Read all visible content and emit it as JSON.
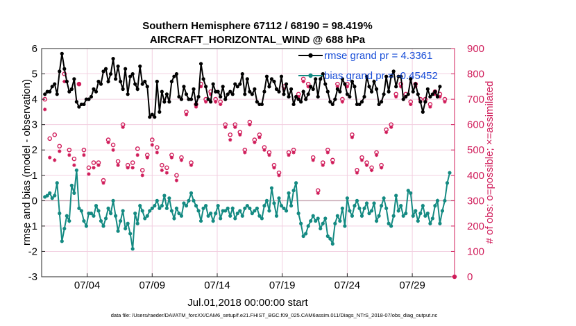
{
  "colors": {
    "rmse": "#000000",
    "bias": "#148a82",
    "obs": "#d01c5a",
    "legend_text": "#1a4fd8",
    "grid": "#f2cfe0",
    "zero_line": "#c9a9b4"
  },
  "chart_data": {
    "type": "line",
    "title": [
      "Southern Hemisphere 67112 / 68190 = 98.419%",
      "AIRCRAFT_HORIZONTAL_WIND @ 688 hPa"
    ],
    "xlabel": "Jul.01,2018 00:00:00 start",
    "ylabel": "rmse and bias (model - observation)",
    "y2label": "# of obs: o=possible; ×=assimilated",
    "footnote": "data file: /Users/raeder/DAI/ATM_forcXX/CAM6_setup/f.e21.FHIST_BGC.f09_025.CAM6assim.011/Diags_NTrS_2018-07/obs_diag_output.nc",
    "xlim": [
      0.5,
      32.25
    ],
    "ylim": [
      -3,
      6
    ],
    "y2lim": [
      0,
      900
    ],
    "yticks": [
      -3,
      -2,
      -1,
      0,
      1,
      2,
      3,
      4,
      5,
      6
    ],
    "y2ticks": [
      0,
      100,
      200,
      300,
      400,
      500,
      600,
      700,
      800,
      900
    ],
    "xticks": [
      {
        "x": 4,
        "label": "07/04"
      },
      {
        "x": 9,
        "label": "07/09"
      },
      {
        "x": 14,
        "label": "07/14"
      },
      {
        "x": 19,
        "label": "07/19"
      },
      {
        "x": 24,
        "label": "07/24"
      },
      {
        "x": 29,
        "label": "07/29"
      }
    ],
    "legend": [
      {
        "name": "rmse grand pr = 4.3361"
      },
      {
        "name": "bias grand pr = -0.45452"
      }
    ],
    "series": [
      {
        "name": "rmse",
        "values": [
          4.2,
          4.3,
          4.3,
          4.5,
          4.6,
          4.2,
          5.1,
          5.8,
          5.2,
          4.7,
          4.3,
          4.4,
          4.8,
          3.9,
          3.7,
          3.8,
          3.8,
          4.0,
          4.0,
          4.1,
          4.4,
          4.3,
          4.7,
          4.6,
          5.1,
          5.2,
          4.7,
          5.0,
          5.6,
          4.8,
          5.3,
          4.7,
          4.4,
          5.2,
          4.2,
          4.9,
          5.0,
          4.6,
          4.4,
          5.3,
          4.6,
          4.7,
          4.5,
          3.3,
          3.4,
          3.3,
          4.7,
          3.5,
          4.3,
          3.9,
          4.2,
          3.9,
          4.7,
          4.9,
          5.0,
          4.1,
          4.0,
          4.5,
          4.2,
          4.0,
          4.0,
          4.4,
          3.8,
          4.1,
          5.4,
          4.8,
          4.5,
          4.0,
          3.9,
          4.6,
          4.3,
          4.3,
          4.1,
          4.5,
          4.0,
          4.2,
          4.3,
          4.2,
          4.6,
          4.5,
          4.6,
          5.0,
          4.2,
          4.8,
          4.3,
          4.2,
          4.4,
          3.9,
          3.8,
          3.8,
          4.3,
          4.9,
          4.5,
          4.8,
          4.7,
          4.4,
          4.3,
          4.9,
          4.2,
          4.6,
          4.1,
          4.4,
          3.8,
          4.1,
          4.0,
          3.9,
          4.3,
          4.0,
          4.2,
          4.5,
          4.4,
          4.8,
          4.1,
          4.8,
          5.0,
          4.6,
          4.3,
          3.9,
          3.8,
          4.0,
          4.4,
          4.3,
          4.8,
          4.6,
          4.2,
          4.1,
          4.7,
          4.5,
          3.8,
          3.8,
          3.9,
          4.1,
          4.9,
          4.5,
          4.3,
          4.7,
          4.4,
          3.8,
          3.9,
          4.2,
          4.9,
          4.3,
          4.9,
          5.1,
          4.5,
          4.9,
          4.9,
          4.0,
          4.1,
          4.2,
          4.8,
          4.3,
          4.6,
          4.2,
          3.9,
          3.5,
          3.9,
          4.4,
          4.1,
          4.2,
          4.3,
          4.1,
          4.5
        ]
      },
      {
        "name": "bias",
        "values": [
          0.15,
          0.2,
          0.3,
          0.1,
          0.2,
          0.7,
          -0.5,
          -1.6,
          -1.1,
          -0.6,
          -0.8,
          0.6,
          0.3,
          1.2,
          -0.3,
          -0.4,
          -0.8,
          -1.0,
          -0.5,
          -0.5,
          -0.6,
          -0.2,
          -0.4,
          -0.8,
          -1.0,
          -0.7,
          -0.3,
          -0.5,
          0.0,
          -0.6,
          -1.2,
          -0.8,
          -0.4,
          -1.1,
          -0.9,
          -1.3,
          -1.9,
          -0.5,
          -0.9,
          -0.2,
          -0.4,
          -0.7,
          -0.6,
          -0.4,
          -0.3,
          -0.2,
          0.0,
          -0.3,
          -0.2,
          0.2,
          -0.3,
          0.1,
          -0.4,
          -0.7,
          -0.3,
          -0.5,
          -0.6,
          -0.1,
          -0.2,
          0.0,
          0.3,
          0.0,
          -0.2,
          -0.4,
          -0.8,
          -0.3,
          -0.2,
          -0.6,
          -0.5,
          -0.8,
          -0.5,
          -0.2,
          -0.7,
          -0.4,
          -0.4,
          -0.3,
          -0.6,
          -0.3,
          -0.7,
          -0.5,
          -0.4,
          -0.6,
          -0.3,
          -0.2,
          -0.3,
          -0.5,
          -0.4,
          -0.3,
          -0.6,
          -0.7,
          -0.2,
          0.0,
          -0.4,
          0.5,
          -0.1,
          -0.6,
          0.1,
          -0.2,
          -0.3,
          -0.4,
          0.3,
          -0.2,
          0.4,
          0.7,
          -0.5,
          -0.9,
          -1.4,
          -1.3,
          -1.0,
          -0.8,
          -0.6,
          -0.8,
          -0.7,
          -1.1,
          -0.9,
          -0.7,
          -1.4,
          -1.5,
          -1.7,
          -0.9,
          -0.6,
          -0.8,
          -0.3,
          -1.0,
          0.1,
          -0.4,
          -0.6,
          -0.2,
          0.0,
          -0.3,
          -0.6,
          -0.3,
          -0.1,
          -0.5,
          -0.4,
          -0.1,
          -0.8,
          -0.6,
          -0.2,
          0.1,
          -0.3,
          -0.9,
          -1.0,
          -0.6,
          0.2,
          -0.4,
          -0.2,
          -0.6,
          -0.5,
          0.4,
          0.3,
          -0.6,
          -0.4,
          -0.8,
          -0.5,
          -0.2,
          -0.6,
          -0.5,
          -0.9,
          -0.7,
          -0.2,
          0.0,
          -0.9,
          -0.4,
          0.0,
          0.7,
          1.1
        ]
      }
    ],
    "obs_possible": [
      700,
      665,
      545,
      550,
      560,
      600,
      515,
      575,
      800,
      610,
      500,
      460,
      465,
      540,
      760,
      520,
      500,
      430,
      430,
      420,
      450,
      510,
      450,
      380,
      380,
      410,
      540,
      540,
      520,
      510,
      455,
      590,
      600,
      520,
      440,
      470,
      450,
      570,
      505,
      480,
      420,
      470,
      480,
      460,
      540,
      380,
      510,
      410,
      440,
      410,
      430,
      440,
      480,
      415,
      400,
      420,
      470,
      480,
      650,
      450,
      450,
      720,
      680,
      820,
      760,
      720,
      700,
      660,
      730,
      790,
      700,
      750,
      690,
      670,
      600,
      720,
      560,
      650,
      600,
      560,
      570,
      530,
      500,
      600,
      610,
      580,
      540,
      520,
      560,
      600,
      510,
      540,
      490,
      450,
      440,
      430,
      410,
      620,
      750,
      560,
      490,
      460,
      500,
      700,
      720,
      790,
      780,
      700,
      760,
      560,
      470,
      390,
      340,
      400,
      450,
      540,
      500,
      430,
      460,
      490,
      760,
      720,
      700,
      780,
      760,
      700,
      560,
      520,
      420,
      420,
      470,
      430,
      450,
      380,
      430,
      550,
      490,
      470,
      440,
      420,
      580,
      560,
      600,
      700,
      720,
      750,
      760,
      710,
      720,
      700,
      690,
      680,
      760,
      780,
      700,
      660,
      700,
      700,
      680,
      720,
      730,
      700,
      720,
      760,
      700,
      690
    ],
    "obs_assimilated": [
      660,
      590,
      470,
      450,
      460,
      580,
      495,
      545,
      770,
      600,
      480,
      430,
      440,
      500,
      760,
      500,
      480,
      410,
      405,
      400,
      430,
      490,
      440,
      370,
      370,
      390,
      530,
      520,
      500,
      500,
      440,
      585,
      590,
      500,
      430,
      460,
      430,
      560,
      480,
      460,
      400,
      460,
      470,
      450,
      520,
      370,
      490,
      400,
      420,
      400,
      410,
      420,
      470,
      400,
      380,
      410,
      460,
      470,
      640,
      430,
      440,
      700,
      670,
      810,
      750,
      700,
      690,
      650,
      720,
      780,
      690,
      740,
      680,
      660,
      590,
      710,
      540,
      640,
      590,
      550,
      560,
      520,
      490,
      590,
      600,
      570,
      530,
      510,
      550,
      590,
      500,
      530,
      480,
      440,
      430,
      420,
      400,
      610,
      740,
      550,
      480,
      450,
      490,
      690,
      710,
      780,
      770,
      690,
      750,
      550,
      460,
      380,
      330,
      390,
      440,
      530,
      490,
      420,
      450,
      480,
      750,
      710,
      690,
      770,
      750,
      690,
      550,
      510,
      410,
      410,
      460,
      420,
      440,
      370,
      420,
      540,
      480,
      460,
      430,
      410,
      570,
      550,
      590,
      690,
      710,
      740,
      750,
      700,
      710,
      690,
      680,
      670,
      750,
      770,
      690,
      650,
      690,
      690,
      670,
      710,
      720,
      690,
      710,
      750,
      690,
      680
    ]
  }
}
